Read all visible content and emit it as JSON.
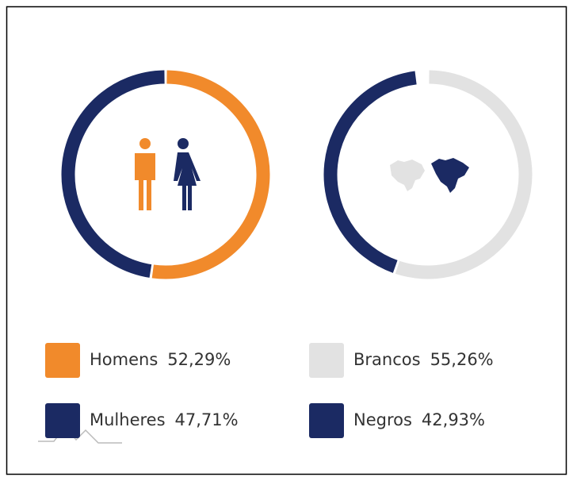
{
  "chart_data": [
    {
      "type": "pie",
      "categories": [
        "Homens",
        "Mulheres"
      ],
      "values": [
        52.29,
        47.71
      ],
      "value_labels": [
        "52,29%",
        "47,71%"
      ],
      "colors": [
        "#f18a2b",
        "#1b2a63"
      ]
    },
    {
      "type": "pie",
      "categories": [
        "Brancos",
        "Negros"
      ],
      "values": [
        55.26,
        42.93
      ],
      "value_labels": [
        "55,26%",
        "42,93%"
      ],
      "colors": [
        "#e2e2e2",
        "#1b2a63"
      ]
    }
  ]
}
